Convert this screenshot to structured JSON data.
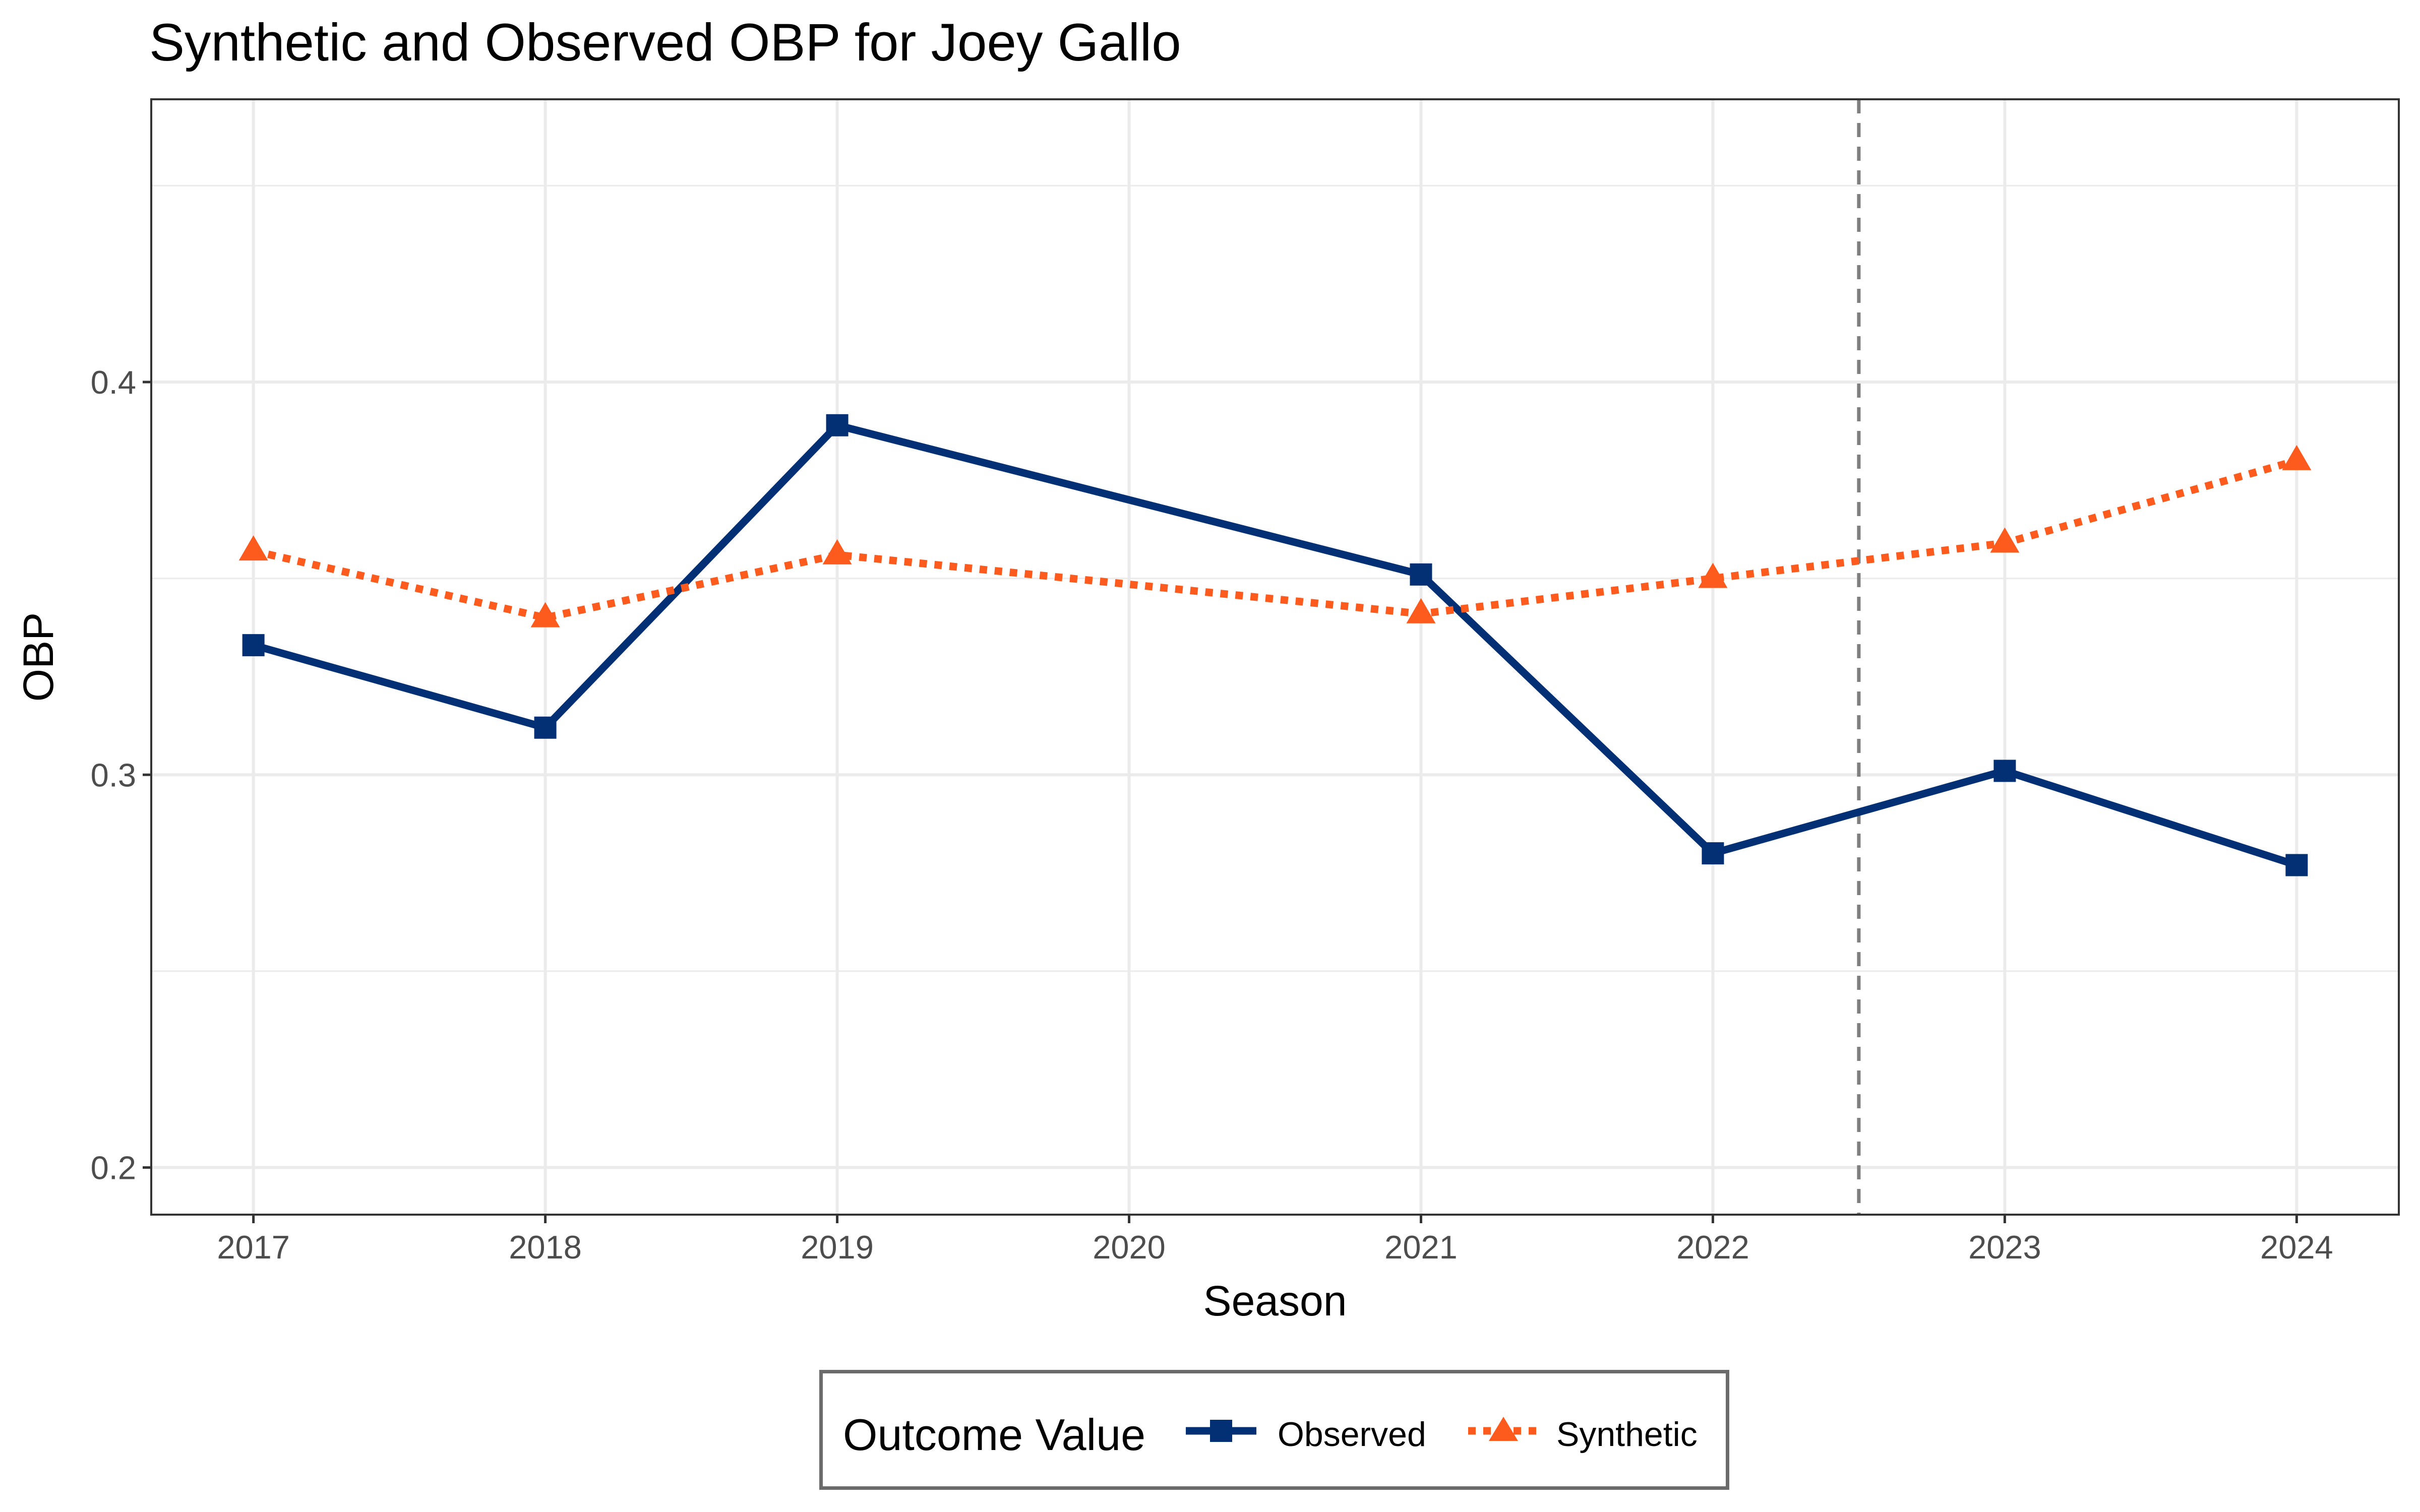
{
  "chart_data": {
    "type": "line",
    "title": "Synthetic and Observed OBP for Joey Gallo",
    "xlabel": "Season",
    "ylabel": "OBP",
    "x": [
      2017,
      2018,
      2019,
      2020,
      2021,
      2022,
      2023,
      2024
    ],
    "xlim": [
      2016.65,
      2024.35
    ],
    "ylim": [
      0.188,
      0.472
    ],
    "y_ticks": [
      0.2,
      0.3,
      0.4
    ],
    "y_tick_labels": [
      "0.2",
      "0.3",
      "0.4"
    ],
    "x_tick_labels": [
      "2017",
      "2018",
      "2019",
      "2020",
      "2021",
      "2022",
      "2023",
      "2024"
    ],
    "grid": true,
    "treatment_line": {
      "x": 2022.5,
      "style": "dashed",
      "color": "#7f7f7f"
    },
    "legend": {
      "title": "Outcome Value",
      "position": "bottom"
    },
    "series": [
      {
        "name": "Observed",
        "color": "#032f74",
        "marker": "square",
        "line": "solid",
        "points": [
          {
            "x": 2017,
            "y": 0.333
          },
          {
            "x": 2018,
            "y": 0.312
          },
          {
            "x": 2019,
            "y": 0.389
          },
          {
            "x": 2021,
            "y": 0.351
          },
          {
            "x": 2022,
            "y": 0.28
          },
          {
            "x": 2023,
            "y": 0.301
          },
          {
            "x": 2024,
            "y": 0.277
          }
        ]
      },
      {
        "name": "Synthetic",
        "color": "#fd5a1e",
        "marker": "triangle",
        "line": "dotted",
        "points": [
          {
            "x": 2017,
            "y": 0.357
          },
          {
            "x": 2018,
            "y": 0.34
          },
          {
            "x": 2019,
            "y": 0.356
          },
          {
            "x": 2021,
            "y": 0.341
          },
          {
            "x": 2022,
            "y": 0.35
          },
          {
            "x": 2023,
            "y": 0.359
          },
          {
            "x": 2024,
            "y": 0.38
          }
        ]
      }
    ]
  }
}
